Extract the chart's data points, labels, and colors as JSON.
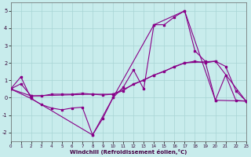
{
  "xlabel": "Windchill (Refroidissement éolien,°C)",
  "xlim": [
    0,
    23
  ],
  "ylim": [
    -2.5,
    5.5
  ],
  "yticks": [
    -2,
    -1,
    0,
    1,
    2,
    3,
    4,
    5
  ],
  "xticks": [
    0,
    1,
    2,
    3,
    4,
    5,
    6,
    7,
    8,
    9,
    10,
    11,
    12,
    13,
    14,
    15,
    16,
    17,
    18,
    19,
    20,
    21,
    22,
    23
  ],
  "bg": "#c8ecec",
  "grid_color": "#a8d4d4",
  "line_color": "#880088",
  "line1_x": [
    0,
    1,
    2,
    3,
    4,
    5,
    6,
    7,
    8,
    9,
    10,
    11,
    12,
    13,
    14,
    15,
    16,
    17,
    18,
    19,
    20,
    21,
    22,
    23
  ],
  "line1_y": [
    0.5,
    1.2,
    -0.05,
    -0.4,
    -0.6,
    -0.7,
    -0.6,
    -0.55,
    -2.15,
    -1.2,
    0.0,
    0.6,
    1.6,
    0.5,
    4.2,
    4.2,
    4.65,
    5.0,
    2.7,
    2.1,
    -0.15,
    1.3,
    -0.15,
    -0.2
  ],
  "line2_x": [
    0,
    2,
    8,
    10,
    14,
    17,
    20,
    23
  ],
  "line2_y": [
    0.5,
    -0.05,
    -2.15,
    0.0,
    4.2,
    5.0,
    -0.15,
    -0.2
  ],
  "line3_x": [
    0,
    1,
    2,
    3,
    4,
    5,
    6,
    7,
    8,
    9,
    10,
    11,
    12,
    13,
    14,
    15,
    16,
    17,
    18,
    19,
    20,
    21,
    22,
    23
  ],
  "line3_y": [
    0.5,
    0.8,
    0.1,
    0.1,
    0.2,
    0.2,
    0.2,
    0.25,
    0.2,
    0.15,
    0.2,
    0.4,
    0.8,
    1.0,
    1.3,
    1.5,
    1.8,
    2.0,
    2.1,
    2.0,
    2.1,
    1.8,
    0.4,
    -0.2
  ],
  "line4_x": [
    0,
    2,
    8,
    10,
    14,
    17,
    20,
    23
  ],
  "line4_y": [
    0.5,
    0.1,
    0.2,
    0.2,
    1.3,
    2.0,
    2.1,
    -0.2
  ]
}
